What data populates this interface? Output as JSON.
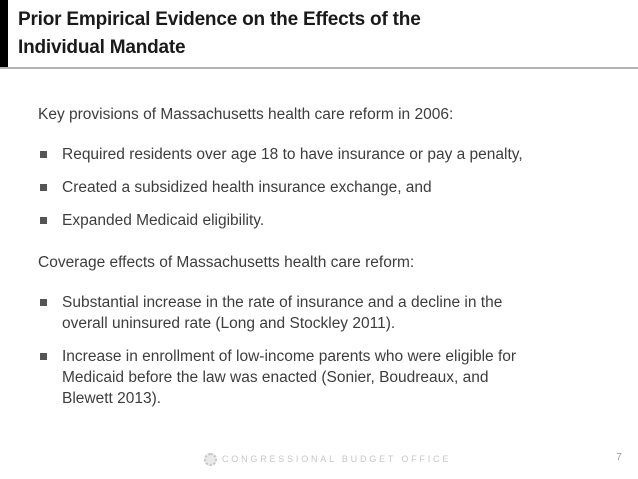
{
  "slide": {
    "title": "Prior Empirical Evidence on the Effects of the\nIndividual Mandate",
    "sections": [
      {
        "heading": "Key provisions of Massachusetts health care reform in 2006:",
        "bullets": [
          "Required residents over age 18 to have insurance or pay a penalty,",
          "Created a subsidized health insurance exchange, and",
          "Expanded Medicaid eligibility."
        ]
      },
      {
        "heading": "Coverage effects of Massachusetts health care reform:",
        "bullets": [
          "Substantial increase in the rate of insurance and a decline in the\noverall uninsured rate (Long and Stockley 2011).",
          "Increase in enrollment of low-income parents who were eligible for\nMedicaid before the law was enacted (Sonier, Boudreaux, and\nBlewett 2013)."
        ]
      }
    ],
    "footer": {
      "org": "CONGRESSIONAL BUDGET OFFICE",
      "page_number": "7",
      "seal_icon": "cbo-seal"
    },
    "colors": {
      "accent_bar": "#000000",
      "header_rule": "#b3b3b3",
      "title_text": "#1a1a1a",
      "body_text": "#3d3d3d",
      "bullet_marker": "#555555",
      "footer_text": "#c6c6c6",
      "page_number_text": "#a3a3a3"
    }
  }
}
